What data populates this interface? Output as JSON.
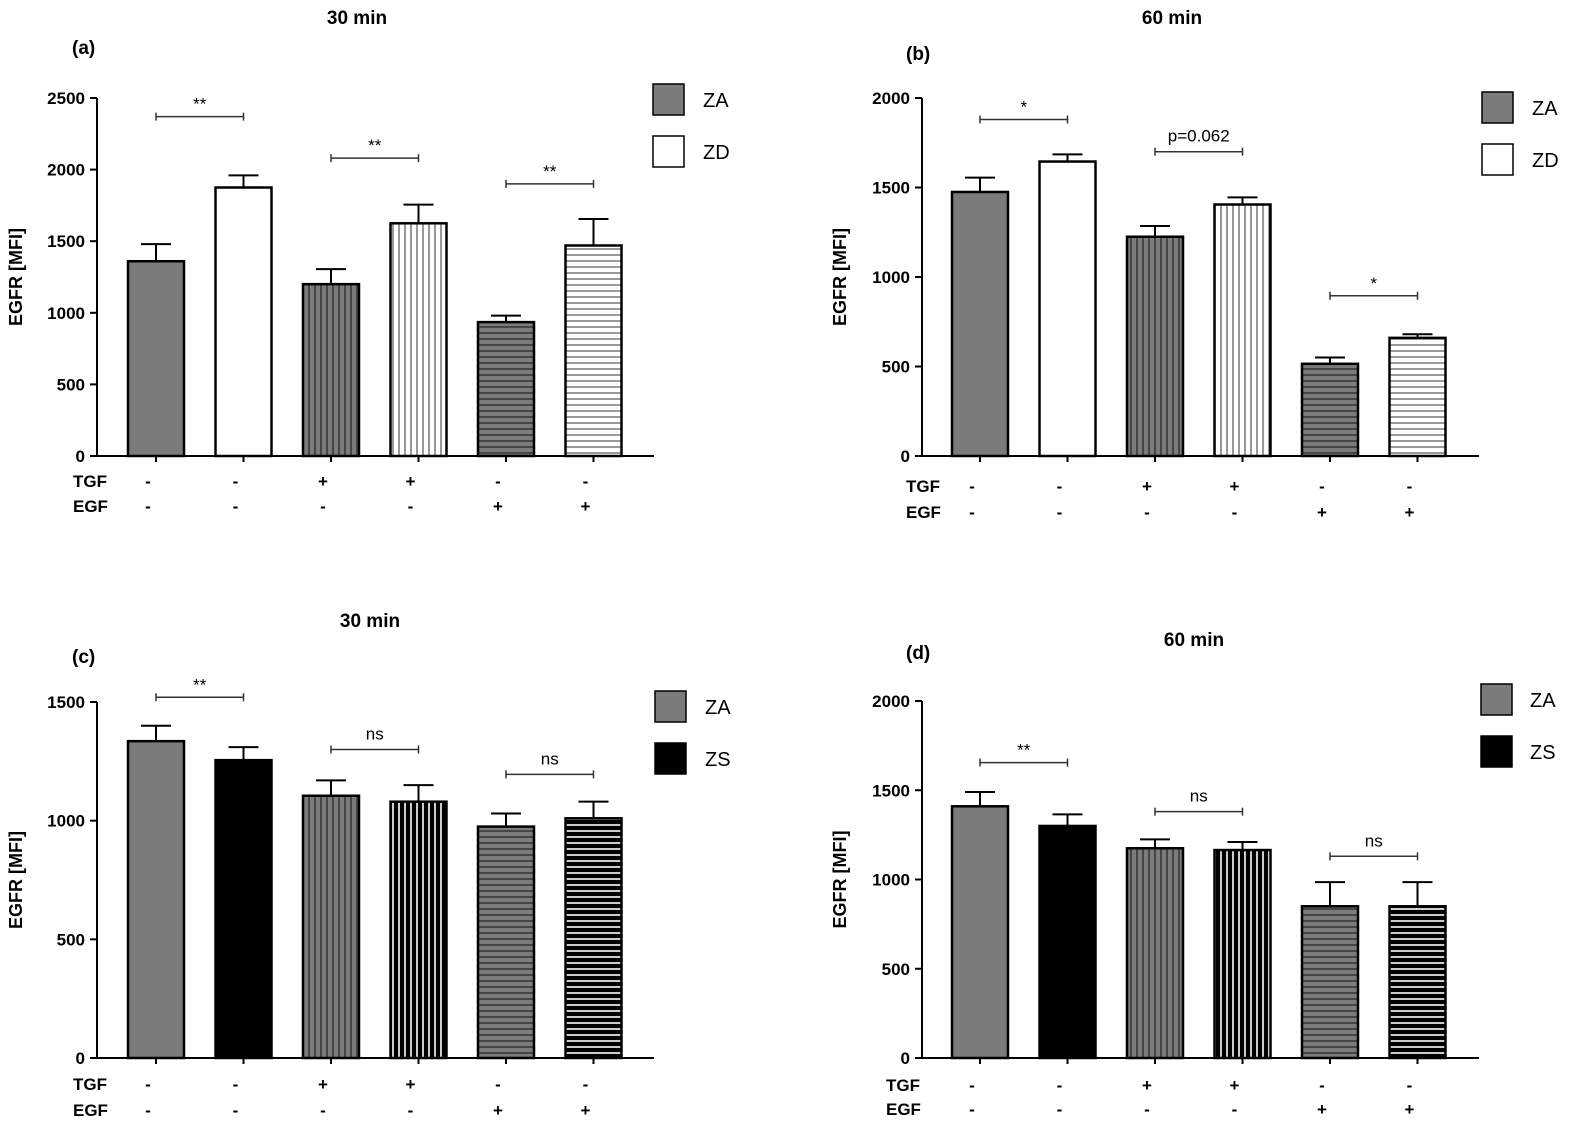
{
  "chart_data": [
    {
      "type": "bar",
      "panel": "(a)",
      "title": "30 min",
      "ylabel": "EGFR [MFI]",
      "ylim": [
        0,
        2500
      ],
      "yticks": [
        0,
        500,
        1000,
        1500,
        2000,
        2500
      ],
      "bars": [
        {
          "group": "ZA",
          "tgf": "-",
          "egf": "-",
          "value": 1360,
          "error": 120,
          "fill": "solid-gray"
        },
        {
          "group": "ZD",
          "tgf": "-",
          "egf": "-",
          "value": 1875,
          "error": 85,
          "fill": "white"
        },
        {
          "group": "ZA",
          "tgf": "+",
          "egf": "-",
          "value": 1200,
          "error": 105,
          "fill": "gray-vertical"
        },
        {
          "group": "ZD",
          "tgf": "+",
          "egf": "-",
          "value": 1625,
          "error": 130,
          "fill": "white-vertical"
        },
        {
          "group": "ZA",
          "tgf": "-",
          "egf": "+",
          "value": 935,
          "error": 45,
          "fill": "gray-horizontal"
        },
        {
          "group": "ZD",
          "tgf": "-",
          "egf": "+",
          "value": 1470,
          "error": 185,
          "fill": "white-horizontal"
        }
      ],
      "significance": [
        {
          "pair": [
            0,
            1
          ],
          "label": "**",
          "y": 2370
        },
        {
          "pair": [
            2,
            3
          ],
          "label": "**",
          "y": 2080
        },
        {
          "pair": [
            4,
            5
          ],
          "label": "**",
          "y": 1900
        }
      ],
      "legend": [
        {
          "label": "ZA",
          "fill": "solid-gray"
        },
        {
          "label": "ZD",
          "fill": "white"
        }
      ],
      "row_labels": [
        "TGF",
        "EGF"
      ]
    },
    {
      "type": "bar",
      "panel": "(b)",
      "title": "60 min",
      "ylabel": "EGFR [MFI]",
      "ylim": [
        0,
        2000
      ],
      "yticks": [
        0,
        500,
        1000,
        1500,
        2000
      ],
      "bars": [
        {
          "group": "ZA",
          "tgf": "-",
          "egf": "-",
          "value": 1475,
          "error": 80,
          "fill": "solid-gray"
        },
        {
          "group": "ZD",
          "tgf": "-",
          "egf": "-",
          "value": 1645,
          "error": 40,
          "fill": "white"
        },
        {
          "group": "ZA",
          "tgf": "+",
          "egf": "-",
          "value": 1225,
          "error": 60,
          "fill": "gray-vertical"
        },
        {
          "group": "ZD",
          "tgf": "+",
          "egf": "-",
          "value": 1405,
          "error": 40,
          "fill": "white-vertical"
        },
        {
          "group": "ZA",
          "tgf": "-",
          "egf": "+",
          "value": 515,
          "error": 35,
          "fill": "gray-horizontal"
        },
        {
          "group": "ZD",
          "tgf": "-",
          "egf": "+",
          "value": 660,
          "error": 20,
          "fill": "white-horizontal"
        }
      ],
      "significance": [
        {
          "pair": [
            0,
            1
          ],
          "label": "*",
          "y": 1880
        },
        {
          "pair": [
            2,
            3
          ],
          "label": "p=0.062",
          "y": 1700
        },
        {
          "pair": [
            4,
            5
          ],
          "label": "*",
          "y": 895
        }
      ],
      "legend": [
        {
          "label": "ZA",
          "fill": "solid-gray"
        },
        {
          "label": "ZD",
          "fill": "white"
        }
      ],
      "row_labels": [
        "TGF",
        "EGF"
      ]
    },
    {
      "type": "bar",
      "panel": "(c)",
      "title": "30 min",
      "ylabel": "EGFR [MFI]",
      "ylim": [
        0,
        1500
      ],
      "yticks": [
        0,
        500,
        1000,
        1500
      ],
      "bars": [
        {
          "group": "ZA",
          "tgf": "-",
          "egf": "-",
          "value": 1335,
          "error": 65,
          "fill": "solid-gray"
        },
        {
          "group": "ZS",
          "tgf": "-",
          "egf": "-",
          "value": 1255,
          "error": 55,
          "fill": "solid-black"
        },
        {
          "group": "ZA",
          "tgf": "+",
          "egf": "-",
          "value": 1105,
          "error": 65,
          "fill": "gray-vertical"
        },
        {
          "group": "ZS",
          "tgf": "+",
          "egf": "-",
          "value": 1080,
          "error": 70,
          "fill": "black-vertical"
        },
        {
          "group": "ZA",
          "tgf": "-",
          "egf": "+",
          "value": 975,
          "error": 55,
          "fill": "gray-horizontal"
        },
        {
          "group": "ZS",
          "tgf": "-",
          "egf": "+",
          "value": 1010,
          "error": 70,
          "fill": "black-horizontal"
        }
      ],
      "significance": [
        {
          "pair": [
            0,
            1
          ],
          "label": "**",
          "y": 1520
        },
        {
          "pair": [
            2,
            3
          ],
          "label": "ns",
          "y": 1300
        },
        {
          "pair": [
            4,
            5
          ],
          "label": "ns",
          "y": 1195
        }
      ],
      "legend": [
        {
          "label": "ZA",
          "fill": "solid-gray"
        },
        {
          "label": "ZS",
          "fill": "solid-black"
        }
      ],
      "row_labels": [
        "TGF",
        "EGF"
      ]
    },
    {
      "type": "bar",
      "panel": "(d)",
      "title": "60 min",
      "ylabel": "EGFR [MFI]",
      "ylim": [
        0,
        2000
      ],
      "yticks": [
        0,
        500,
        1000,
        1500,
        2000
      ],
      "bars": [
        {
          "group": "ZA",
          "tgf": "-",
          "egf": "-",
          "value": 1410,
          "error": 80,
          "fill": "solid-gray"
        },
        {
          "group": "ZS",
          "tgf": "-",
          "egf": "-",
          "value": 1300,
          "error": 65,
          "fill": "solid-black"
        },
        {
          "group": "ZA",
          "tgf": "+",
          "egf": "-",
          "value": 1175,
          "error": 50,
          "fill": "gray-vertical"
        },
        {
          "group": "ZS",
          "tgf": "+",
          "egf": "-",
          "value": 1165,
          "error": 45,
          "fill": "black-vertical"
        },
        {
          "group": "ZA",
          "tgf": "-",
          "egf": "+",
          "value": 850,
          "error": 135,
          "fill": "gray-horizontal"
        },
        {
          "group": "ZS",
          "tgf": "-",
          "egf": "+",
          "value": 850,
          "error": 135,
          "fill": "black-horizontal"
        }
      ],
      "significance": [
        {
          "pair": [
            0,
            1
          ],
          "label": "**",
          "y": 1655
        },
        {
          "pair": [
            2,
            3
          ],
          "label": "ns",
          "y": 1380
        },
        {
          "pair": [
            4,
            5
          ],
          "label": "ns",
          "y": 1130
        }
      ],
      "legend": [
        {
          "label": "ZA",
          "fill": "solid-gray"
        },
        {
          "label": "ZS",
          "fill": "solid-black"
        }
      ],
      "row_labels": [
        "TGF",
        "EGF"
      ]
    }
  ],
  "colors": {
    "gray": "#7b7b7b",
    "black": "#000000",
    "white": "#ffffff",
    "axis": "#000000"
  }
}
